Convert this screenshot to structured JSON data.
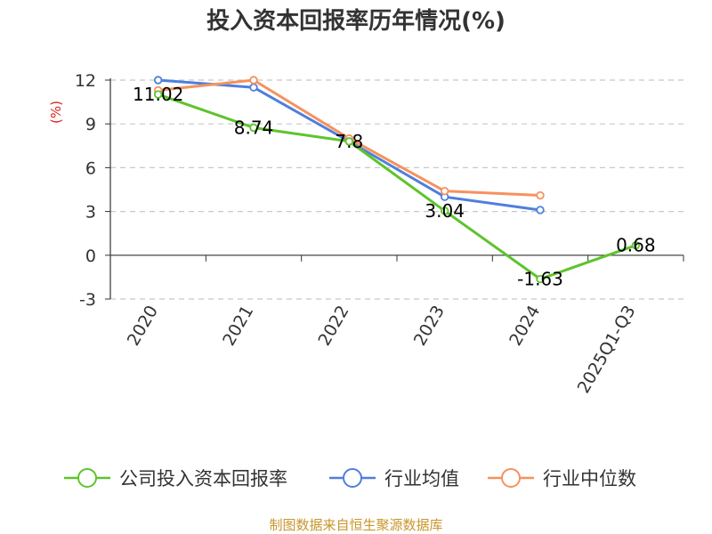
{
  "chart_data": {
    "type": "line",
    "title": "投入资本回报率历年情况(%)",
    "ylabel": "(%)",
    "xlabel": "",
    "categories": [
      "2020",
      "2021",
      "2022",
      "2023",
      "2024",
      "2025Q1-Q3"
    ],
    "yticks": [
      -3,
      0,
      3,
      6,
      9,
      12
    ],
    "ylim": [
      -3,
      12
    ],
    "grid": true,
    "legend_position": "bottom",
    "series": [
      {
        "name": "公司投入资本回报率",
        "color": "#5ec42c",
        "values": [
          11.02,
          8.74,
          7.8,
          3.04,
          -1.63,
          0.68
        ],
        "labels": [
          "11.02",
          "8.74",
          "7.8",
          "3.04",
          "-1.63",
          "0.68"
        ]
      },
      {
        "name": "行业均值",
        "color": "#4f7fde",
        "values": [
          12.0,
          11.5,
          7.8,
          4.0,
          3.1,
          null
        ]
      },
      {
        "name": "行业中位数",
        "color": "#f5925e",
        "values": [
          11.3,
          12.0,
          8.0,
          4.4,
          4.1,
          null
        ]
      }
    ]
  },
  "footer": {
    "source": "制图数据来自恒生聚源数据库"
  }
}
